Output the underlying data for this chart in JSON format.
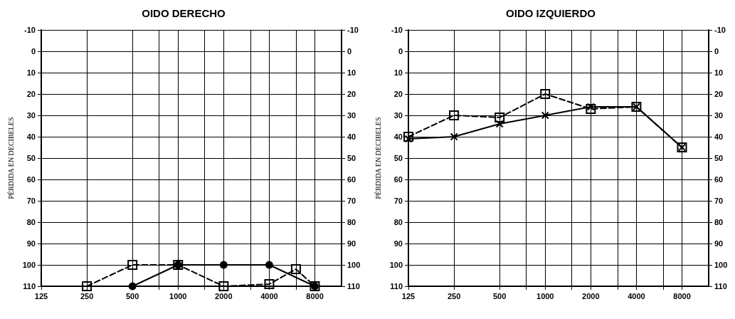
{
  "chart_data": [
    {
      "type": "line",
      "title": "OIDO DERECHO",
      "ylabel": "PÉRDIDA EN DECIBELES",
      "log": "x",
      "xlim": [
        125,
        12000
      ],
      "xticks": [
        125,
        250,
        500,
        {
          "value": 750,
          "label": null
        },
        1000,
        {
          "value": 1500,
          "label": null
        },
        2000,
        {
          "value": 3000,
          "label": null
        },
        4000,
        {
          "value": 6000,
          "label": null
        },
        8000
      ],
      "ylim": [
        110,
        -10
      ],
      "yticks": [
        -10,
        0,
        10,
        20,
        30,
        40,
        50,
        60,
        70,
        80,
        90,
        100,
        110
      ],
      "y2lim": [
        110,
        -10
      ],
      "y2ticks": [
        -10,
        0,
        10,
        20,
        30,
        40,
        50,
        60,
        70,
        80,
        90,
        100,
        110
      ],
      "grid": true,
      "series": [
        {
          "color": "#000000",
          "marker": "circle",
          "line_style": "solid",
          "x": [
            500,
            1000,
            2000,
            4000,
            8000
          ],
          "values": [
            110,
            100,
            100,
            100,
            110
          ]
        },
        {
          "color": "#000000",
          "marker": "square",
          "line_style": "dashed",
          "x": [
            250,
            500,
            1000,
            2000,
            4000,
            6000,
            8000
          ],
          "values": [
            110,
            100,
            100,
            110,
            109,
            102,
            110
          ]
        }
      ]
    },
    {
      "type": "line",
      "title": "OIDO IZQUIERDO",
      "ylabel": "PÉRDIDA EN DECIBELES",
      "log": "x",
      "xlim": [
        125,
        12000
      ],
      "xticks": [
        125,
        250,
        500,
        {
          "value": 750,
          "label": null
        },
        1000,
        {
          "value": 1500,
          "label": null
        },
        2000,
        {
          "value": 3000,
          "label": null
        },
        4000,
        {
          "value": 6000,
          "label": null
        },
        8000
      ],
      "ylim": [
        110,
        -10
      ],
      "yticks": [
        -10,
        0,
        10,
        20,
        30,
        40,
        50,
        60,
        70,
        80,
        90,
        100,
        110
      ],
      "y2lim": [
        110,
        -10
      ],
      "y2ticks": [
        -10,
        0,
        10,
        20,
        30,
        40,
        50,
        60,
        70,
        80,
        90,
        100,
        110
      ],
      "grid": true,
      "series": [
        {
          "color": "#000000",
          "marker": "cross",
          "line_style": "solid",
          "x": [
            125,
            250,
            500,
            1000,
            2000,
            4000,
            8000
          ],
          "values": [
            41,
            40,
            34,
            30,
            26,
            26,
            45
          ]
        },
        {
          "color": "#000000",
          "marker": "square",
          "line_style": "dashed",
          "x": [
            125,
            250,
            500,
            1000,
            2000,
            4000,
            8000
          ],
          "values": [
            40,
            30,
            31,
            20,
            27,
            26,
            45
          ]
        }
      ]
    }
  ]
}
